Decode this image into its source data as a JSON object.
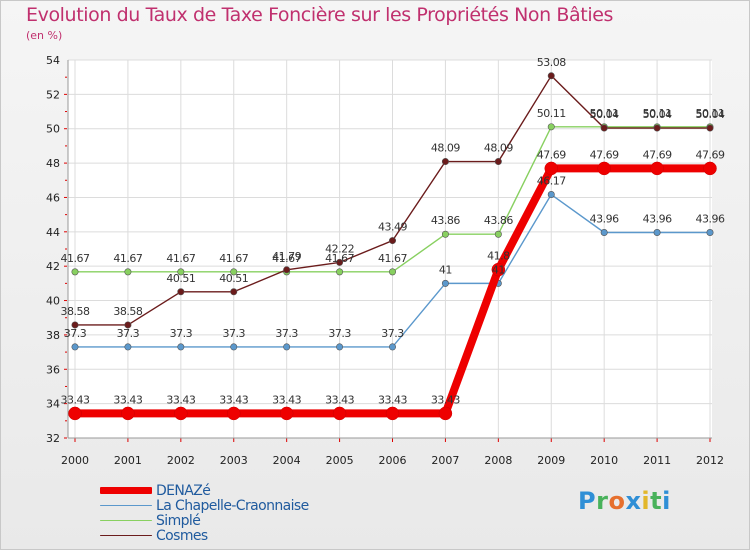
{
  "header": {
    "title": "Evolution du Taux de Taxe Foncière sur les Propriétés Non Bâties",
    "subtitle": "(en %)"
  },
  "brand": {
    "letters": [
      "P",
      "r",
      "o",
      "x",
      "i",
      "t",
      "i"
    ],
    "colors": [
      "#2f8fd6",
      "#49b25b",
      "#e6702e",
      "#2f8fd6",
      "#e2b72a",
      "#49b25b",
      "#2f8fd6"
    ]
  },
  "chart_data": {
    "type": "line",
    "title": "Evolution du Taux de Taxe Foncière sur les Propriétés Non Bâties",
    "ylabel": "(en %)",
    "xlabel": "",
    "categories": [
      "2000",
      "2001",
      "2002",
      "2003",
      "2004",
      "2005",
      "2006",
      "2007",
      "2008",
      "2009",
      "2010",
      "2011",
      "2012"
    ],
    "ylim": [
      32,
      54
    ],
    "yticks": [
      32,
      34,
      36,
      38,
      40,
      42,
      44,
      46,
      48,
      50,
      52,
      54
    ],
    "grid": true,
    "legend_position": "bottom-left",
    "series": [
      {
        "name": "DENAZé",
        "color": "#ee0000",
        "labels": [
          "33.43",
          "33.43",
          "33.43",
          "33.43",
          "33.43",
          "33.43",
          "33.43",
          "33.43",
          "41.8",
          "47.69",
          "47.69",
          "47.69",
          "47.69"
        ],
        "values": [
          33.43,
          33.43,
          33.43,
          33.43,
          33.43,
          33.43,
          33.43,
          33.43,
          41.8,
          47.69,
          47.69,
          47.69,
          47.69
        ]
      },
      {
        "name": "La Chapelle-Craonnaise",
        "color": "#5b98cc",
        "labels": [
          "37.3",
          "37.3",
          "37.3",
          "37.3",
          "37.3",
          "37.3",
          "37.3",
          "41",
          "41",
          "46.17",
          "43.96",
          "43.96",
          "43.96"
        ],
        "values": [
          37.3,
          37.3,
          37.3,
          37.3,
          37.3,
          37.3,
          37.3,
          41,
          41,
          46.17,
          43.96,
          43.96,
          43.96
        ]
      },
      {
        "name": "Simplé",
        "color": "#88d060",
        "labels": [
          "41.67",
          "41.67",
          "41.67",
          "41.67",
          "41.67",
          "41.67",
          "41.67",
          "43.86",
          "43.86",
          "50.11",
          "50.11",
          "50.11",
          "50.11"
        ],
        "values": [
          41.67,
          41.67,
          41.67,
          41.67,
          41.67,
          41.67,
          41.67,
          43.86,
          43.86,
          50.11,
          50.11,
          50.11,
          50.11
        ]
      },
      {
        "name": "Cosmes",
        "color": "#6b1c1c",
        "labels": [
          "38.58",
          "38.58",
          "40.51",
          "40.51",
          "41.79",
          "42.22",
          "43.49",
          "48.09",
          "48.09",
          "53.08",
          "50.04",
          "50.04",
          "50.04"
        ],
        "values": [
          38.58,
          38.58,
          40.51,
          40.51,
          41.79,
          42.22,
          43.49,
          48.09,
          48.09,
          53.08,
          50.04,
          50.04,
          50.04
        ]
      }
    ]
  }
}
